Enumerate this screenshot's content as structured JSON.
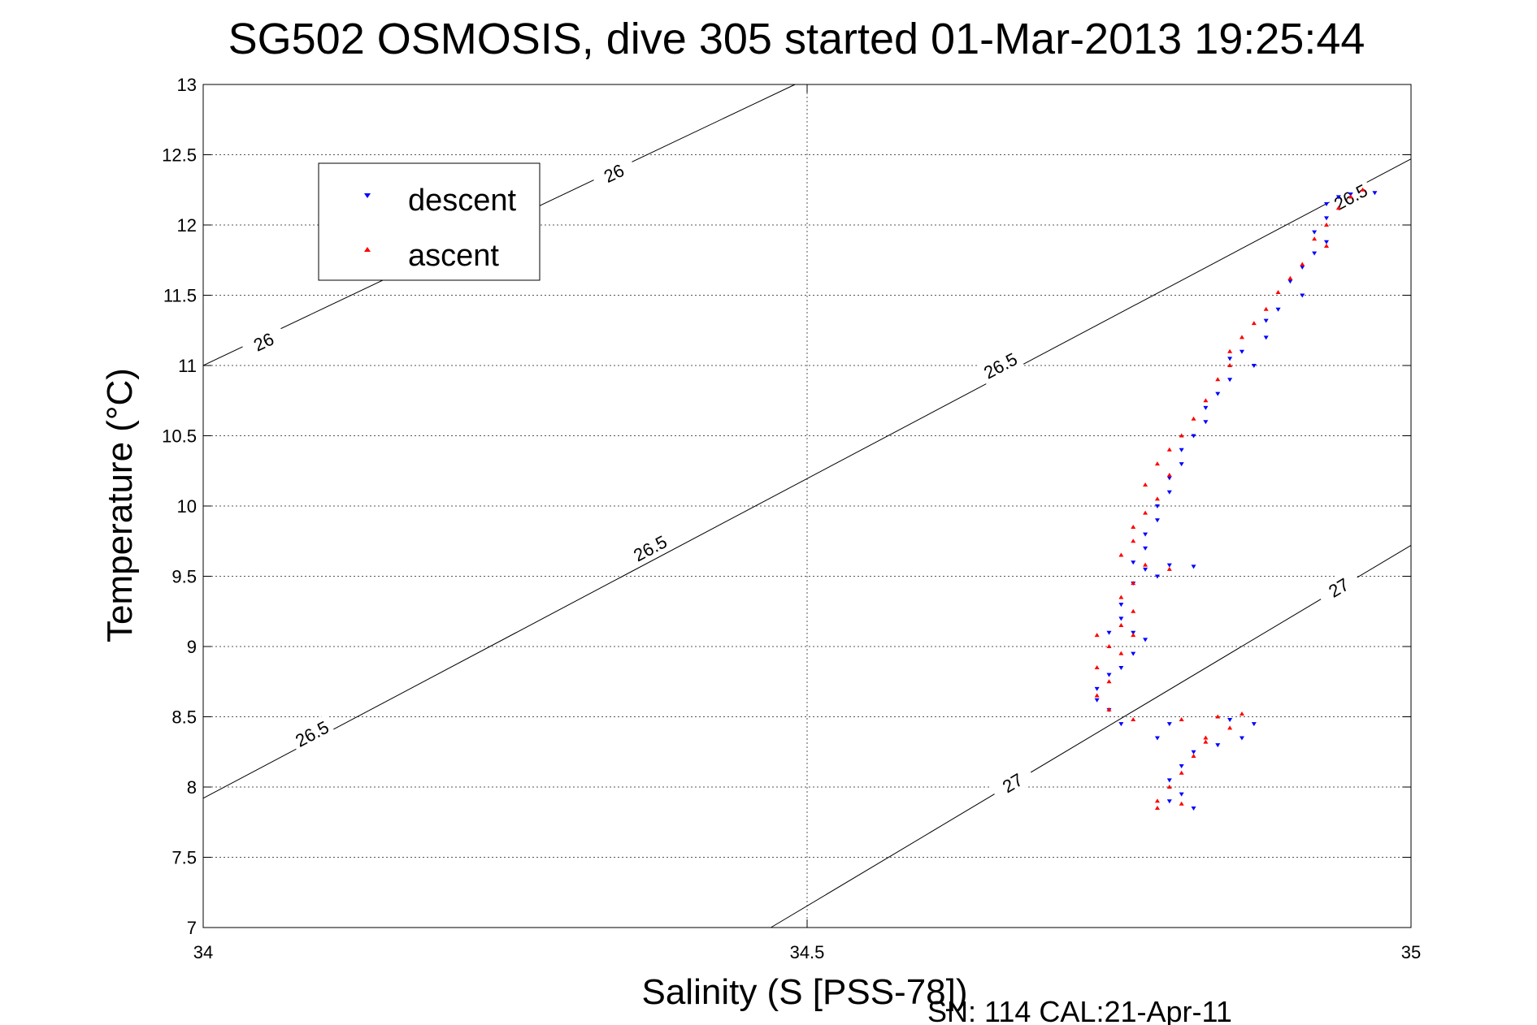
{
  "chart_data": {
    "type": "scatter",
    "title": "SG502 OSMOSIS, dive 305 started 01-Mar-2013 19:25:44",
    "xlabel": "Salinity (S [PSS-78])",
    "ylabel": "Temperature (°C)",
    "footer": "SN: 114  CAL:21-Apr-11",
    "xlim": [
      34,
      35
    ],
    "ylim": [
      7,
      13
    ],
    "xticks": [
      34,
      34.5,
      35
    ],
    "xtick_labels": [
      "34",
      "34.5",
      "35"
    ],
    "yticks": [
      7,
      7.5,
      8,
      8.5,
      9,
      9.5,
      10,
      10.5,
      11,
      11.5,
      12,
      12.5,
      13
    ],
    "ytick_labels": [
      "7",
      "7.5",
      "8",
      "8.5",
      "9",
      "9.5",
      "10",
      "10.5",
      "11",
      "11.5",
      "12",
      "12.5",
      "13"
    ],
    "grid": true,
    "legend_position": "top-left",
    "contours": [
      {
        "label": "26",
        "points": [
          [
            34,
            11.0
          ],
          [
            34.49,
            13.0
          ]
        ],
        "label_positions": [
          [
            34.05,
            11.17
          ],
          [
            34.34,
            12.37
          ]
        ]
      },
      {
        "label": "26.5",
        "points": [
          [
            34,
            7.92
          ],
          [
            35,
            12.47
          ]
        ],
        "label_positions": [
          [
            34.09,
            8.38
          ],
          [
            34.37,
            9.7
          ],
          [
            34.66,
            11.0
          ],
          [
            34.95,
            12.2
          ]
        ]
      },
      {
        "label": "27",
        "points": [
          [
            34.47,
            7.0
          ],
          [
            35,
            9.72
          ]
        ],
        "label_positions": [
          [
            34.67,
            8.03
          ],
          [
            34.94,
            9.42
          ]
        ]
      }
    ],
    "series": [
      {
        "name": "descent",
        "color": "#0000ff",
        "marker": "triangle-down",
        "values": [
          [
            34.95,
            12.22
          ],
          [
            34.97,
            12.23
          ],
          [
            34.94,
            12.2
          ],
          [
            34.93,
            12.15
          ],
          [
            34.93,
            12.05
          ],
          [
            34.92,
            11.95
          ],
          [
            34.93,
            11.88
          ],
          [
            34.92,
            11.8
          ],
          [
            34.91,
            11.7
          ],
          [
            34.9,
            11.6
          ],
          [
            34.91,
            11.5
          ],
          [
            34.89,
            11.4
          ],
          [
            34.88,
            11.32
          ],
          [
            34.88,
            11.2
          ],
          [
            34.86,
            11.1
          ],
          [
            34.85,
            11.05
          ],
          [
            34.87,
            11.0
          ],
          [
            34.85,
            10.9
          ],
          [
            34.84,
            10.8
          ],
          [
            34.83,
            10.7
          ],
          [
            34.83,
            10.6
          ],
          [
            34.82,
            10.5
          ],
          [
            34.81,
            10.4
          ],
          [
            34.81,
            10.3
          ],
          [
            34.8,
            10.2
          ],
          [
            34.8,
            10.1
          ],
          [
            34.79,
            10.0
          ],
          [
            34.79,
            9.9
          ],
          [
            34.78,
            9.8
          ],
          [
            34.78,
            9.7
          ],
          [
            34.77,
            9.6
          ],
          [
            34.78,
            9.55
          ],
          [
            34.8,
            9.58
          ],
          [
            34.82,
            9.57
          ],
          [
            34.79,
            9.5
          ],
          [
            34.77,
            9.45
          ],
          [
            34.76,
            9.3
          ],
          [
            34.76,
            9.2
          ],
          [
            34.77,
            9.1
          ],
          [
            34.75,
            9.1
          ],
          [
            34.78,
            9.05
          ],
          [
            34.77,
            8.95
          ],
          [
            34.76,
            8.85
          ],
          [
            34.75,
            8.8
          ],
          [
            34.74,
            8.7
          ],
          [
            34.74,
            8.62
          ],
          [
            34.75,
            8.55
          ],
          [
            34.76,
            8.45
          ],
          [
            34.8,
            8.45
          ],
          [
            34.85,
            8.48
          ],
          [
            34.87,
            8.45
          ],
          [
            34.86,
            8.35
          ],
          [
            34.84,
            8.3
          ],
          [
            34.82,
            8.25
          ],
          [
            34.81,
            8.15
          ],
          [
            34.8,
            8.05
          ],
          [
            34.81,
            7.95
          ],
          [
            34.82,
            7.85
          ],
          [
            34.8,
            7.9
          ],
          [
            34.79,
            8.35
          ]
        ]
      },
      {
        "name": "ascent",
        "color": "#ff0000",
        "marker": "triangle-up",
        "values": [
          [
            34.96,
            12.25
          ],
          [
            34.95,
            12.2
          ],
          [
            34.94,
            12.12
          ],
          [
            34.93,
            12.0
          ],
          [
            34.92,
            11.9
          ],
          [
            34.93,
            11.85
          ],
          [
            34.91,
            11.72
          ],
          [
            34.9,
            11.62
          ],
          [
            34.89,
            11.52
          ],
          [
            34.88,
            11.4
          ],
          [
            34.87,
            11.3
          ],
          [
            34.86,
            11.2
          ],
          [
            34.85,
            11.1
          ],
          [
            34.85,
            11.0
          ],
          [
            34.84,
            10.9
          ],
          [
            34.83,
            10.75
          ],
          [
            34.82,
            10.62
          ],
          [
            34.81,
            10.5
          ],
          [
            34.8,
            10.4
          ],
          [
            34.79,
            10.3
          ],
          [
            34.8,
            10.22
          ],
          [
            34.78,
            10.15
          ],
          [
            34.79,
            10.05
          ],
          [
            34.78,
            9.95
          ],
          [
            34.77,
            9.85
          ],
          [
            34.77,
            9.75
          ],
          [
            34.76,
            9.65
          ],
          [
            34.78,
            9.58
          ],
          [
            34.8,
            9.55
          ],
          [
            34.77,
            9.45
          ],
          [
            34.76,
            9.35
          ],
          [
            34.77,
            9.25
          ],
          [
            34.76,
            9.15
          ],
          [
            34.74,
            9.08
          ],
          [
            34.75,
            9.0
          ],
          [
            34.77,
            9.08
          ],
          [
            34.76,
            8.95
          ],
          [
            34.74,
            8.85
          ],
          [
            34.75,
            8.75
          ],
          [
            34.74,
            8.65
          ],
          [
            34.75,
            8.55
          ],
          [
            34.77,
            8.48
          ],
          [
            34.81,
            8.48
          ],
          [
            34.84,
            8.5
          ],
          [
            34.86,
            8.52
          ],
          [
            34.85,
            8.42
          ],
          [
            34.83,
            8.35
          ],
          [
            34.82,
            8.22
          ],
          [
            34.81,
            8.1
          ],
          [
            34.8,
            8.0
          ],
          [
            34.79,
            7.9
          ],
          [
            34.79,
            7.85
          ],
          [
            34.81,
            7.88
          ],
          [
            34.83,
            8.32
          ]
        ]
      }
    ]
  }
}
